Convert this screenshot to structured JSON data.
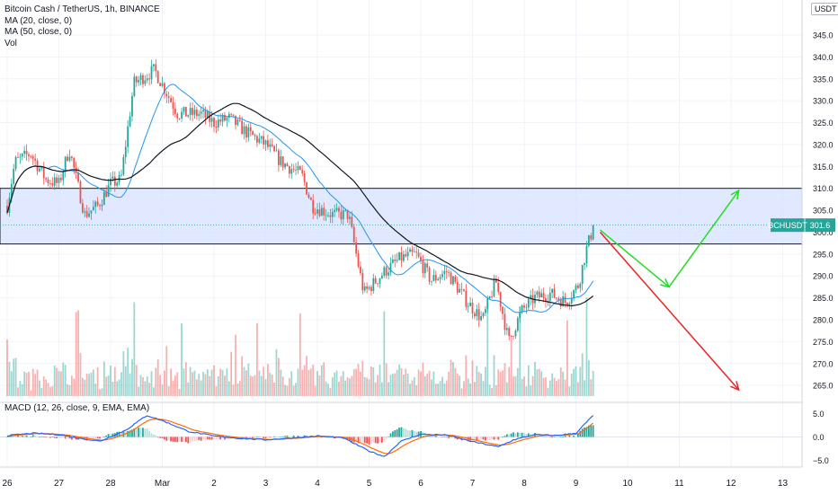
{
  "symbol_title": "Bitcoin Cash / TetherUS, 1h, BINANCE",
  "ma20_label": "MA (20, close, 0)",
  "ma50_label": "MA (50, close, 0)",
  "vol_label": "Vol",
  "macd_label": "MACD (12, 26, close, 9, EMA, EMA)",
  "currency_button": "USDT",
  "price_tag": {
    "symbol": "BCHUSDT",
    "value": "301.6"
  },
  "colors": {
    "up": "#26a69a",
    "down": "#ef5350",
    "ma20": "#2196f3",
    "ma50": "#131722",
    "zone_fill": "#d6e1ff",
    "arrow_green": "#22dd22",
    "arrow_red": "#ee2222",
    "macd_line": "#2962ff",
    "signal_line": "#ff6d00"
  },
  "chart_data": {
    "type": "candlestick",
    "x_ticks": [
      "26",
      "27",
      "28",
      "Mar",
      "2",
      "3",
      "4",
      "5",
      "6",
      "7",
      "8",
      "9",
      "10",
      "11",
      "12",
      "13"
    ],
    "y_ticks": [
      345,
      340,
      335,
      330,
      325,
      320,
      315,
      310,
      305,
      300,
      295,
      290,
      285,
      280,
      275,
      270,
      265
    ],
    "ylim": [
      262,
      348
    ],
    "macd_ticks": [
      "5.0",
      "0.0",
      "−5.0"
    ],
    "macd_ylim": [
      -6.2,
      7
    ],
    "x_domain": [
      0,
      15.3
    ],
    "last_price": 301.6,
    "zone": {
      "low": 297.3,
      "high": 310.0
    },
    "anchors": [
      [
        0,
        306
      ],
      [
        0.15,
        316
      ],
      [
        0.45,
        318
      ],
      [
        0.75,
        312
      ],
      [
        1.0,
        311
      ],
      [
        1.2,
        319
      ],
      [
        1.5,
        304
      ],
      [
        1.75,
        306
      ],
      [
        2.0,
        311
      ],
      [
        2.2,
        312
      ],
      [
        2.45,
        334
      ],
      [
        2.85,
        337
      ],
      [
        3.3,
        327
      ],
      [
        3.75,
        327
      ],
      [
        4.0,
        325
      ],
      [
        4.3,
        326
      ],
      [
        4.6,
        323
      ],
      [
        5.0,
        320
      ],
      [
        5.3,
        316
      ],
      [
        5.7,
        313
      ],
      [
        5.9,
        306
      ],
      [
        6.3,
        304
      ],
      [
        6.6,
        304
      ],
      [
        6.9,
        286
      ],
      [
        7.3,
        291
      ],
      [
        7.6,
        294
      ],
      [
        7.9,
        295
      ],
      [
        8.2,
        289
      ],
      [
        8.5,
        291
      ],
      [
        8.9,
        284
      ],
      [
        9.2,
        280
      ],
      [
        9.45,
        289
      ],
      [
        9.7,
        275
      ],
      [
        9.95,
        282
      ],
      [
        10.2,
        285
      ],
      [
        10.5,
        286
      ],
      [
        10.8,
        284
      ],
      [
        11.05,
        288
      ],
      [
        11.2,
        296
      ],
      [
        11.35,
        301.6
      ]
    ],
    "macd_anchors": [
      [
        0,
        0.3
      ],
      [
        0.5,
        0.8
      ],
      [
        1.0,
        0.5
      ],
      [
        1.4,
        -0.3
      ],
      [
        1.8,
        -0.9
      ],
      [
        2.3,
        1.5
      ],
      [
        2.7,
        4.6
      ],
      [
        3.0,
        3.5
      ],
      [
        3.5,
        1.2
      ],
      [
        4.0,
        0.2
      ],
      [
        4.5,
        -0.3
      ],
      [
        5.0,
        -0.6
      ],
      [
        5.5,
        -0.2
      ],
      [
        6.0,
        0.2
      ],
      [
        6.5,
        -0.2
      ],
      [
        7.0,
        -3.0
      ],
      [
        7.3,
        -4.2
      ],
      [
        7.6,
        -1.0
      ],
      [
        8.0,
        0.6
      ],
      [
        8.5,
        0.4
      ],
      [
        9.0,
        -1.0
      ],
      [
        9.5,
        -2.1
      ],
      [
        9.8,
        -0.6
      ],
      [
        10.2,
        0.5
      ],
      [
        10.6,
        0.3
      ],
      [
        11.0,
        0.8
      ],
      [
        11.35,
        4.8
      ]
    ],
    "scenario_arrows": {
      "green": [
        [
          11.47,
          300.5
        ],
        [
          12.8,
          287.5
        ],
        [
          14.15,
          309.5
        ]
      ],
      "red": [
        [
          11.47,
          300.0
        ],
        [
          14.15,
          264.0
        ]
      ]
    }
  }
}
